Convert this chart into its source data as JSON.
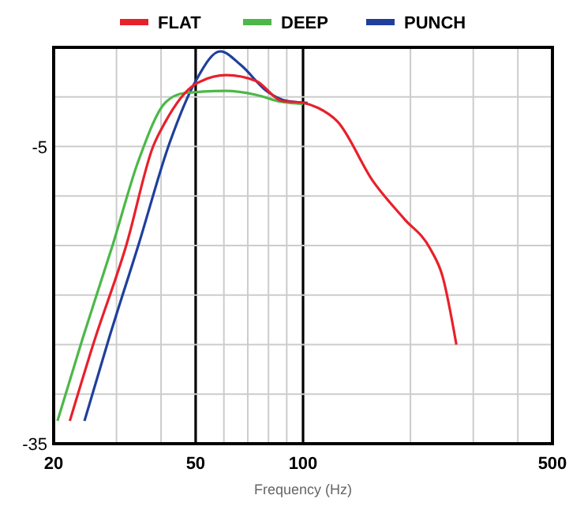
{
  "chart_data": {
    "type": "line",
    "xlabel": "Frequency (Hz)",
    "log": "x",
    "grid": true,
    "legend": "top",
    "line_style": "solid",
    "marker": "none",
    "xlim": [
      20,
      500
    ],
    "xticks": [
      20,
      {
        "value": 30,
        "label": null
      },
      {
        "value": 40,
        "label": null
      },
      50,
      {
        "value": 60,
        "label": null
      },
      {
        "value": 70,
        "label": null
      },
      {
        "value": 80,
        "label": null
      },
      {
        "value": 90,
        "label": null
      },
      100,
      {
        "value": 200,
        "label": null
      },
      {
        "value": 300,
        "label": null
      },
      {
        "value": 400,
        "label": null
      },
      500
    ],
    "ylim": [
      -35,
      5
    ],
    "yticks": [
      -35,
      {
        "value": -30,
        "label": null
      },
      {
        "value": -25,
        "label": null
      },
      {
        "value": -20,
        "label": null
      },
      {
        "value": -15,
        "label": null
      },
      {
        "value": -10,
        "label": null
      },
      -5,
      {
        "value": 0,
        "label": null
      },
      {
        "value": 5,
        "label": null
      }
    ],
    "series": [
      {
        "name": "FLAT",
        "color": "#e8202a",
        "x": [
          22.2,
          25.8,
          32,
          38,
          41,
          50,
          60.9,
          74,
          87,
          100,
          110,
          125,
          157,
          192,
          227,
          246,
          269
        ],
        "values": [
          -32.7,
          -25,
          -14.9,
          -5,
          -2.6,
          1.3,
          2.2,
          1.6,
          -0.4,
          -0.6,
          -1.1,
          -2.5,
          -8.5,
          -12.3,
          -15.3,
          -18.1,
          -25
        ]
      },
      {
        "name": "DEEP",
        "color": "#4cb848",
        "x": [
          20.5,
          24.1,
          29.3,
          34.6,
          41.3,
          46.7,
          60.9,
          74,
          87,
          100
        ],
        "values": [
          -32.7,
          -24.4,
          -14.9,
          -6.4,
          -0.5,
          0.4,
          0.6,
          0.2,
          -0.5,
          -0.7
        ]
      },
      {
        "name": "PUNCH",
        "color": "#1f3f9c",
        "x": [
          24.4,
          28.4,
          34.6,
          42.3,
          50,
          58.6,
          67,
          79,
          90,
          103
        ],
        "values": [
          -32.7,
          -24.7,
          -14.9,
          -4.6,
          1.6,
          4.6,
          3.2,
          0.6,
          -0.4,
          -0.6
        ]
      }
    ]
  }
}
